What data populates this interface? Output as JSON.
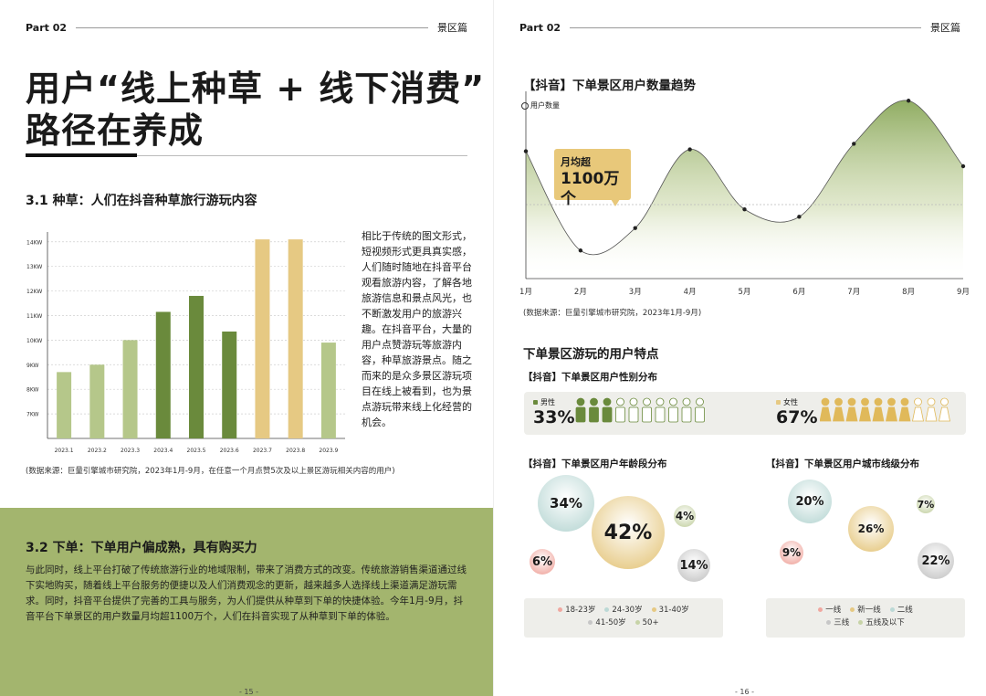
{
  "left": {
    "header": {
      "part": "Part 02",
      "section": "景区篇"
    },
    "title_line1": "用户“线上种草 + 线下消费”",
    "title_line2": "路径在养成",
    "s1_heading": "3.1 种草：人们在抖音种草旅行游玩内容",
    "s1_paragraph": "相比于传统的图文形式，短视频形式更具真实感，人们随时随地在抖音平台观看旅游内容，了解各地旅游信息和景点风光，也不断激发用户的旅游兴趣。在抖音平台，大量的用户点赞游玩等旅游内容，种草旅游景点。随之而来的是众多景区游玩项目在线上被看到，也为景点游玩带来线上化经营的机会。",
    "s1_source": "(数据来源：巨量引擎城市研究院，2023年1月-9月，在任意一个月点赞5次及以上景区游玩相关内容的用户)",
    "s2_heading": "3.2 下单：下单用户偏成熟，具有购买力",
    "s2_paragraph": "与此同时，线上平台打破了传统旅游行业的地域限制，带来了消费方式的改变。传统旅游销售渠道通过线下实地购买，随着线上平台服务的便捷以及人们消费观念的更新，越来越多人选择线上渠道满足游玩需求。同时，抖音平台提供了完善的工具与服务，为人们提供从种草到下单的快捷体验。今年1月-9月，抖音平台下单景区的用户数量月均超1100万个，人们在抖音实现了从种草到下单的体验。",
    "page_number": "- 15 -"
  },
  "right": {
    "header": {
      "part": "Part 02",
      "section": "景区篇"
    },
    "trend_heading": "【抖音】下单景区用户数量趋势",
    "trend_ylabel": "用户数量",
    "trend_callout_l1": "月均超",
    "trend_callout_l2": "1100万个",
    "trend_source": "(数据来源：巨量引擎城市研究院，2023年1月-9月)",
    "features_heading": "下单景区游玩的用户特点",
    "gender_heading": "【抖音】下单景区用户性别分布",
    "male_label": "男性",
    "male_value": "33%",
    "female_label": "女性",
    "female_value": "67%",
    "age_heading": "【抖音】下单景区用户年龄段分布",
    "city_heading": "【抖音】下单景区用户城市线级分布",
    "page_number": "- 16 -"
  },
  "colors": {
    "green_dark": "#6a8a3c",
    "green_light": "#b5c78a",
    "yellow": "#e6c983",
    "box_green": "#a3b56e",
    "callout": "#e8c87a"
  },
  "chart_data": [
    {
      "type": "bar",
      "categories": [
        "2023.1",
        "2023.2",
        "2023.3",
        "2023.4",
        "2023.5",
        "2023.6",
        "2023.7",
        "2023.8",
        "2023.9"
      ],
      "values": [
        8.7,
        9.0,
        10.0,
        11.15,
        11.8,
        10.35,
        14.1,
        14.1,
        9.9
      ],
      "colors": [
        "#b5c78a",
        "#b5c78a",
        "#b5c78a",
        "#6a8a3c",
        "#6a8a3c",
        "#6a8a3c",
        "#e6c983",
        "#e6c983",
        "#b5c78a"
      ],
      "ytick_labels": [
        "7KW",
        "8KW",
        "9KW",
        "10KW",
        "11KW",
        "12KW",
        "13KW",
        "14KW"
      ],
      "yticks": [
        7,
        8,
        9,
        10,
        11,
        12,
        13,
        14
      ],
      "ylim": [
        6,
        14.4
      ],
      "title": "",
      "xlabel": "",
      "ylabel": ""
    },
    {
      "type": "area",
      "categories": [
        "1月",
        "2月",
        "3月",
        "4月",
        "5月",
        "6月",
        "7月",
        "8月",
        "9月"
      ],
      "values": [
        0.68,
        0.15,
        0.27,
        0.69,
        0.37,
        0.33,
        0.72,
        0.95,
        0.6
      ],
      "ylabel": "用户数量",
      "ylim": [
        0,
        1
      ]
    },
    {
      "type": "pie",
      "title": "【抖音】下单景区用户年龄段分布",
      "categories": [
        "18-23岁",
        "24-30岁",
        "31-40岁",
        "41-50岁",
        "50+"
      ],
      "values": [
        6,
        34,
        42,
        14,
        4
      ],
      "labels": [
        "6%",
        "34%",
        "42%",
        "14%",
        "4%"
      ],
      "colors": [
        "#f0a8a0",
        "#bcd9d6",
        "#e6c983",
        "#c7c7c7",
        "#c7d3a7"
      ]
    },
    {
      "type": "pie",
      "title": "【抖音】下单景区用户城市线级分布",
      "categories": [
        "一线",
        "新一线",
        "二线",
        "三线",
        "五线及以下"
      ],
      "values": [
        9,
        26,
        20,
        22,
        7
      ],
      "labels": [
        "9%",
        "26%",
        "20%",
        "22%",
        "7%"
      ],
      "colors": [
        "#f0a8a0",
        "#e6c983",
        "#bcd9d6",
        "#c7c7c7",
        "#c7d3a7"
      ]
    }
  ]
}
